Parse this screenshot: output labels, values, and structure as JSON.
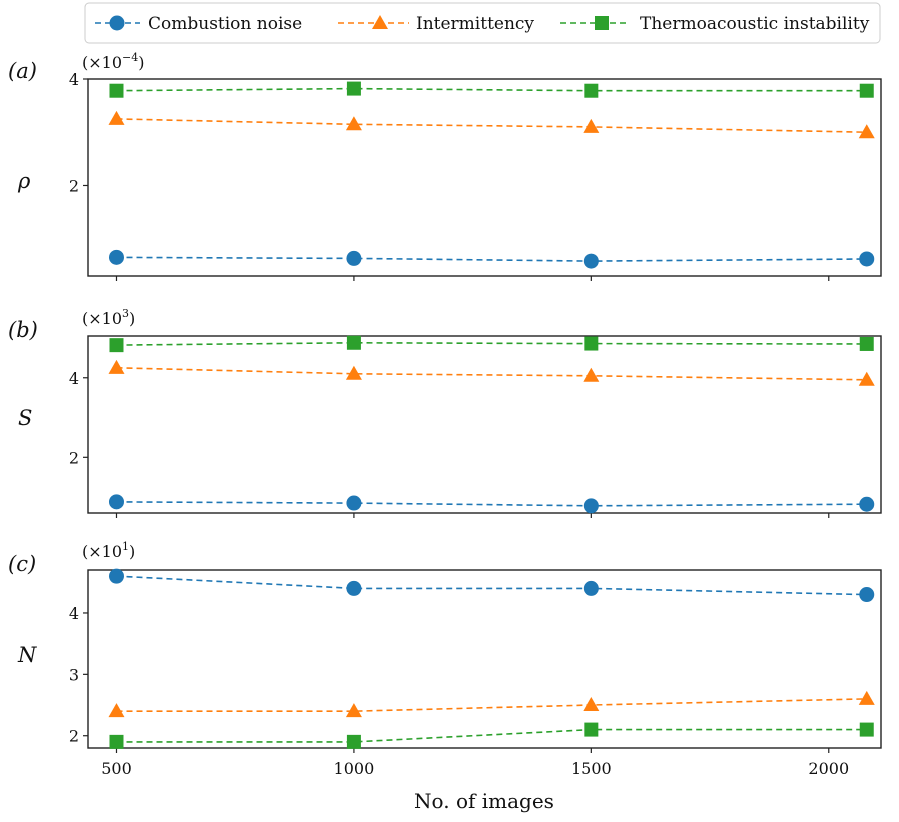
{
  "legend": [
    {
      "label": "Combustion noise",
      "color": "#1f77b4",
      "marker": "circle"
    },
    {
      "label": "Intermittency",
      "color": "#ff7f0e",
      "marker": "triangle"
    },
    {
      "label": "Thermoacoustic instability",
      "color": "#2ca02c",
      "marker": "square"
    }
  ],
  "chart_data": [
    {
      "type": "line",
      "panel_label": "(a)",
      "ylabel": "ρ",
      "multiplier": "(×10",
      "multiplier_exp": "−4",
      "multiplier_close": ")",
      "x": [
        500,
        1000,
        1500,
        2080
      ],
      "xlim": [
        440,
        2110
      ],
      "ylim": [
        0.3,
        4.0
      ],
      "yticks": [
        2,
        4
      ],
      "series": [
        {
          "name": "Combustion noise",
          "values": [
            0.65,
            0.63,
            0.58,
            0.62
          ]
        },
        {
          "name": "Intermittency",
          "values": [
            3.25,
            3.15,
            3.1,
            3.0
          ]
        },
        {
          "name": "Thermoacoustic instability",
          "values": [
            3.78,
            3.82,
            3.78,
            3.78
          ]
        }
      ]
    },
    {
      "type": "line",
      "panel_label": "(b)",
      "ylabel": "S",
      "multiplier": "(×10",
      "multiplier_exp": "3",
      "multiplier_close": ")",
      "x": [
        500,
        1000,
        1500,
        2080
      ],
      "xlim": [
        440,
        2110
      ],
      "ylim": [
        0.6,
        5.05
      ],
      "yticks": [
        2,
        4
      ],
      "series": [
        {
          "name": "Combustion noise",
          "values": [
            0.88,
            0.85,
            0.78,
            0.82
          ]
        },
        {
          "name": "Intermittency",
          "values": [
            4.25,
            4.1,
            4.05,
            3.95
          ]
        },
        {
          "name": "Thermoacoustic instability",
          "values": [
            4.82,
            4.88,
            4.86,
            4.85
          ]
        }
      ]
    },
    {
      "type": "line",
      "panel_label": "(c)",
      "ylabel": "N",
      "multiplier": "(×10",
      "multiplier_exp": "1",
      "multiplier_close": ")",
      "x": [
        500,
        1000,
        1500,
        2080
      ],
      "xlim": [
        440,
        2110
      ],
      "ylim": [
        1.8,
        4.7
      ],
      "yticks": [
        2,
        3,
        4
      ],
      "series": [
        {
          "name": "Combustion noise",
          "values": [
            4.6,
            4.4,
            4.4,
            4.3
          ]
        },
        {
          "name": "Intermittency",
          "values": [
            2.4,
            2.4,
            2.5,
            2.6
          ]
        },
        {
          "name": "Thermoacoustic instability",
          "values": [
            1.9,
            1.9,
            2.1,
            2.1
          ]
        }
      ]
    }
  ],
  "xticks": [
    500,
    1000,
    1500,
    2000
  ],
  "xticklabels": [
    "500",
    "1000",
    "1500",
    "2000"
  ],
  "xlabel": "No. of images"
}
